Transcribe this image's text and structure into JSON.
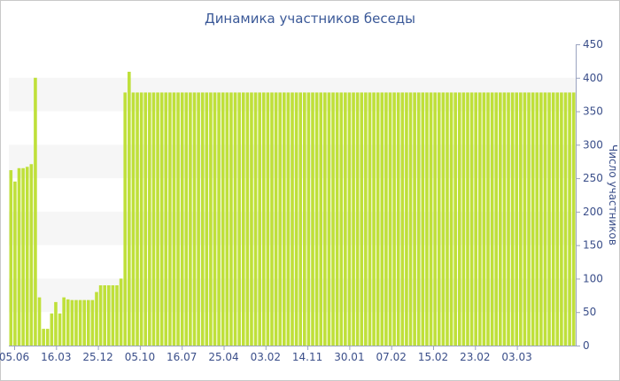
{
  "chart_data": {
    "type": "bar",
    "title": "Динамика участников беседы",
    "xlabel": "",
    "ylabel": "Число участников",
    "ylim": [
      0,
      450
    ],
    "yticks": [
      0,
      50,
      100,
      150,
      200,
      250,
      300,
      350,
      400,
      450
    ],
    "y_axis_position": "right",
    "grid": "alternating horizontal bands",
    "legend": "none",
    "bar_color": "#bfe03a",
    "x_tick_labels": [
      "05.06",
      "16.03",
      "25.12",
      "05.10",
      "16.07",
      "25.04",
      "03.02",
      "14.11",
      "30.01",
      "07.02",
      "15.02",
      "23.02",
      "03.03"
    ],
    "values": [
      262,
      245,
      265,
      265,
      267,
      271,
      400,
      72,
      25,
      25,
      48,
      65,
      48,
      72,
      69,
      68,
      68,
      68,
      68,
      68,
      68,
      80,
      90,
      90,
      90,
      90,
      90,
      100,
      378,
      409,
      378,
      378,
      378,
      378,
      378,
      378,
      378,
      378,
      378,
      378,
      378,
      378,
      378,
      378,
      378,
      378,
      378,
      378,
      378,
      378,
      378,
      378,
      378,
      378,
      378,
      378,
      378,
      378,
      378,
      378,
      378,
      378,
      378,
      378,
      378,
      378,
      378,
      378,
      378,
      378,
      378,
      378,
      378,
      378,
      378,
      378,
      378,
      378,
      378,
      378,
      378,
      378,
      378,
      378,
      378,
      378,
      378,
      378,
      378,
      378,
      378,
      378,
      378,
      378,
      378,
      378,
      378,
      378,
      378,
      378,
      378,
      378,
      378,
      378,
      378,
      378,
      378,
      378,
      378,
      378,
      378,
      378,
      378,
      378,
      378,
      378,
      378,
      378,
      378,
      378,
      378,
      378,
      378,
      378,
      378,
      378,
      378,
      378,
      378,
      378,
      378,
      378,
      378,
      378,
      378,
      378,
      378,
      378,
      378
    ]
  }
}
